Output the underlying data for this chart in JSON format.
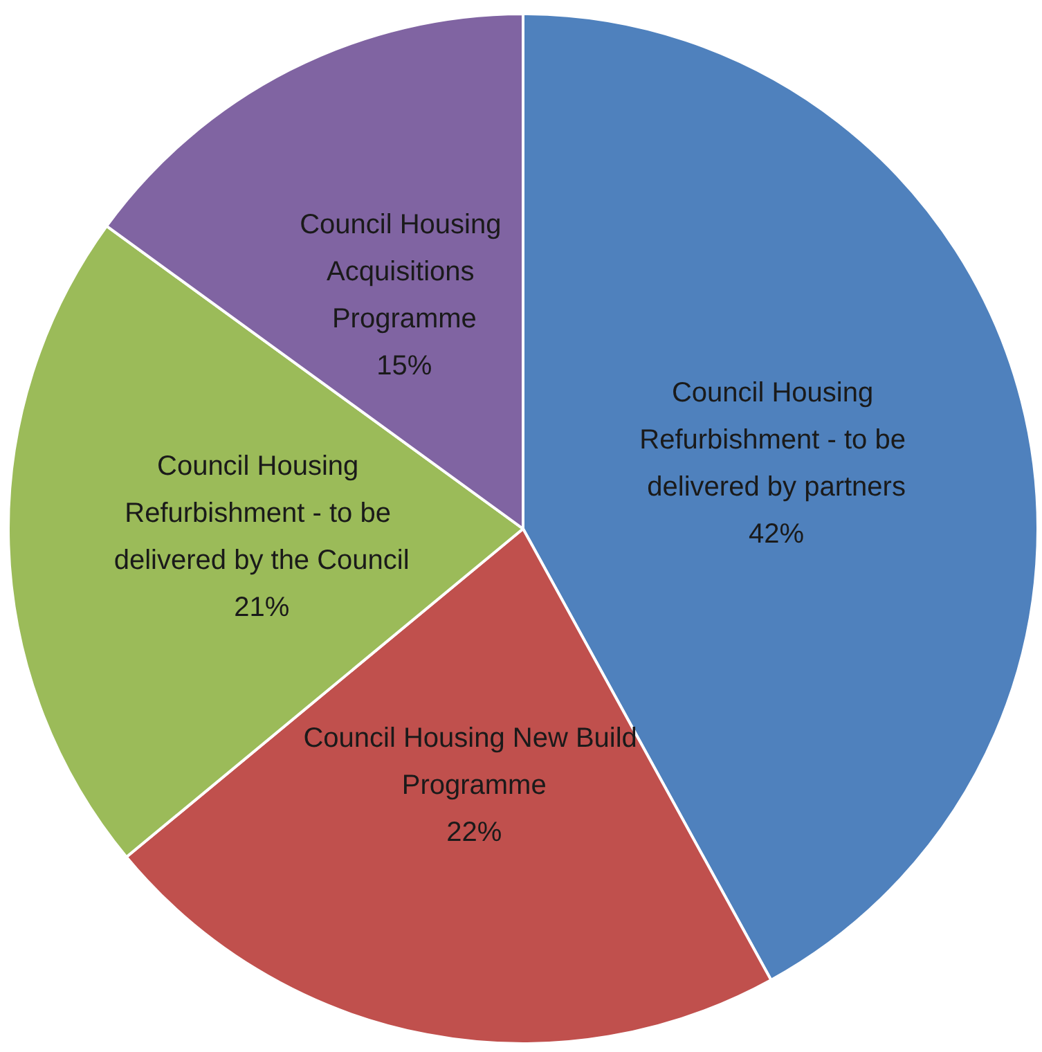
{
  "chart_data": {
    "type": "pie",
    "categories": [
      "Council Housing Refurbishment - to be delivered by partners",
      "Council Housing New Build Programme",
      "Council Housing Refurbishment - to be delivered by the Council",
      "Council Housing Acquisitions Programme"
    ],
    "values": [
      42,
      22,
      21,
      15
    ],
    "value_labels": [
      "42%",
      "22%",
      "21%",
      "15%"
    ],
    "colors": [
      "#4f81bd",
      "#c0504d",
      "#9bbb59",
      "#8064a2"
    ],
    "legend": false
  }
}
